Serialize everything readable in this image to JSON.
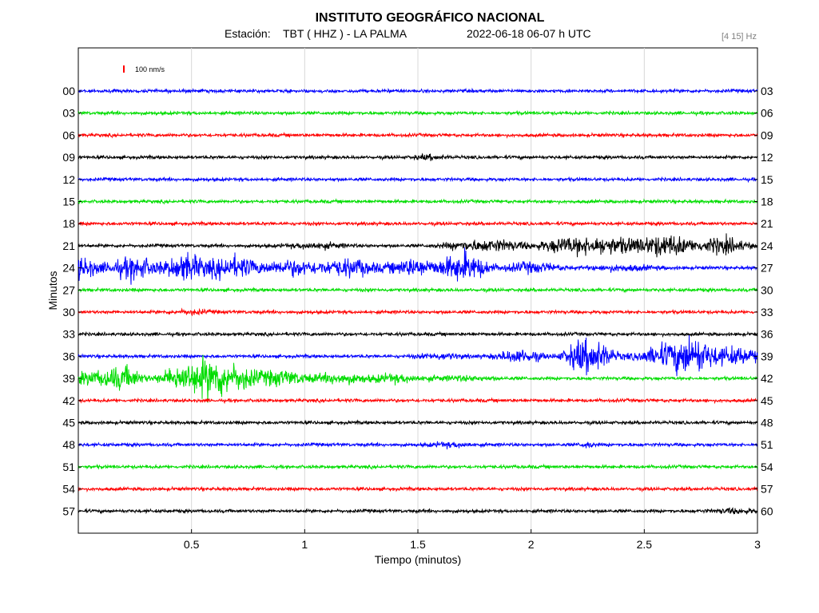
{
  "header": {
    "title": "INSTITUTO GEOGRÁFICO NACIONAL",
    "station_label": "Estación:",
    "station": "TBT ( HHZ ) - LA PALMA",
    "datetime": "2022-06-18  06-07 h UTC",
    "filter": "[4 15] Hz"
  },
  "scale": {
    "label": "100 nm/s",
    "color": "#ff0000"
  },
  "chart_data": {
    "type": "line",
    "xlabel": "Tiempo (minutos)",
    "ylabel": "Minutos",
    "xlim": [
      0,
      3
    ],
    "x_ticks": [
      0.5,
      1,
      1.5,
      2,
      2.5,
      3
    ],
    "x_tick_labels": [
      "0.5",
      "1",
      "1.5",
      "2",
      "2.5",
      "3"
    ],
    "grid": "vertical",
    "trace_colors": [
      "#0000ff",
      "#00dd00",
      "#ff0000",
      "#000000"
    ],
    "rows": [
      {
        "left": "00",
        "right": "03",
        "color": "#0000ff",
        "events": []
      },
      {
        "left": "03",
        "right": "06",
        "color": "#00dd00",
        "events": []
      },
      {
        "left": "06",
        "right": "09",
        "color": "#ff0000",
        "events": []
      },
      {
        "left": "09",
        "right": "12",
        "color": "#000000",
        "events": [
          [
            1.55,
            0.06,
            1.6
          ]
        ]
      },
      {
        "left": "12",
        "right": "15",
        "color": "#0000ff",
        "events": []
      },
      {
        "left": "15",
        "right": "18",
        "color": "#00dd00",
        "events": []
      },
      {
        "left": "18",
        "right": "21",
        "color": "#ff0000",
        "events": []
      },
      {
        "left": "21",
        "right": "24",
        "color": "#000000",
        "events": [
          [
            1.05,
            0.12,
            2
          ],
          [
            1.7,
            0.1,
            2.2
          ],
          [
            1.85,
            0.12,
            4
          ],
          [
            2.15,
            0.12,
            5
          ],
          [
            2.35,
            0.15,
            6
          ],
          [
            2.6,
            0.12,
            8
          ],
          [
            2.85,
            0.1,
            6
          ]
        ]
      },
      {
        "left": "24",
        "right": "27",
        "color": "#0000ff",
        "events": [
          [
            0.0,
            0.1,
            8
          ],
          [
            0.25,
            0.1,
            9
          ],
          [
            0.47,
            0.08,
            11
          ],
          [
            0.68,
            0.12,
            9
          ],
          [
            0.95,
            0.12,
            6
          ],
          [
            1.2,
            0.12,
            7
          ],
          [
            1.48,
            0.1,
            7
          ],
          [
            1.7,
            0.1,
            12
          ],
          [
            2.0,
            0.12,
            4
          ],
          [
            2.4,
            0.15,
            2
          ]
        ]
      },
      {
        "left": "27",
        "right": "30",
        "color": "#00dd00",
        "events": []
      },
      {
        "left": "30",
        "right": "33",
        "color": "#ff0000",
        "events": [
          [
            0.5,
            0.08,
            1.5
          ]
        ]
      },
      {
        "left": "33",
        "right": "36",
        "color": "#000000",
        "events": []
      },
      {
        "left": "36",
        "right": "39",
        "color": "#0000ff",
        "events": [
          [
            1.6,
            0.1,
            2
          ],
          [
            1.95,
            0.1,
            5
          ],
          [
            2.2,
            0.06,
            7
          ],
          [
            2.28,
            0.08,
            12
          ],
          [
            2.6,
            0.12,
            9
          ],
          [
            2.72,
            0.08,
            12
          ],
          [
            2.9,
            0.12,
            7
          ]
        ]
      },
      {
        "left": "39",
        "right": "42",
        "color": "#00dd00",
        "events": [
          [
            0.05,
            0.1,
            5
          ],
          [
            0.2,
            0.08,
            9
          ],
          [
            0.45,
            0.08,
            10
          ],
          [
            0.58,
            0.08,
            14
          ],
          [
            0.7,
            0.1,
            9
          ],
          [
            0.9,
            0.1,
            6
          ],
          [
            1.15,
            0.12,
            4
          ],
          [
            1.4,
            0.12,
            3
          ],
          [
            1.7,
            0.15,
            1.5
          ]
        ]
      },
      {
        "left": "42",
        "right": "45",
        "color": "#ff0000",
        "events": []
      },
      {
        "left": "45",
        "right": "48",
        "color": "#000000",
        "events": []
      },
      {
        "left": "48",
        "right": "51",
        "color": "#0000ff",
        "events": [
          [
            1.65,
            0.1,
            1.6
          ],
          [
            2.25,
            0.03,
            2
          ]
        ]
      },
      {
        "left": "51",
        "right": "54",
        "color": "#00dd00",
        "events": []
      },
      {
        "left": "54",
        "right": "57",
        "color": "#ff0000",
        "events": []
      },
      {
        "left": "57",
        "right": "60",
        "color": "#000000",
        "events": [
          [
            2.9,
            0.1,
            1.6
          ]
        ]
      }
    ]
  }
}
